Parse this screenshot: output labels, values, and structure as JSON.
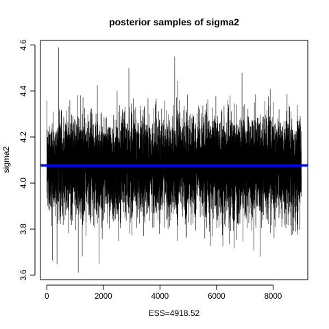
{
  "chart_data": {
    "type": "line",
    "title": "posterior samples of sigma2",
    "xlabel": "ESS=4918.52",
    "ylabel": "sigma2",
    "xlim": [
      -225,
      9225
    ],
    "ylim": [
      3.58,
      4.62
    ],
    "x_ticks": [
      0,
      2000,
      4000,
      6000,
      8000
    ],
    "y_ticks": [
      3.6,
      3.8,
      4.0,
      4.2,
      4.4,
      4.6
    ],
    "x_tick_labels": [
      "0",
      "2000",
      "4000",
      "6000",
      "8000"
    ],
    "y_tick_labels": [
      "3.6",
      "3.8",
      "4.0",
      "4.2",
      "4.4",
      "4.6"
    ],
    "grid": false,
    "n_samples": 9000,
    "trace_mean": 4.075,
    "trace_sd": 0.102,
    "trace_min": 3.61,
    "trace_max": 4.59,
    "series": [
      {
        "type": "line",
        "color": "#000000",
        "x_range": [
          1,
          9000
        ]
      },
      {
        "type": "hline",
        "y": 4.077,
        "color": "#0000FF"
      }
    ]
  }
}
